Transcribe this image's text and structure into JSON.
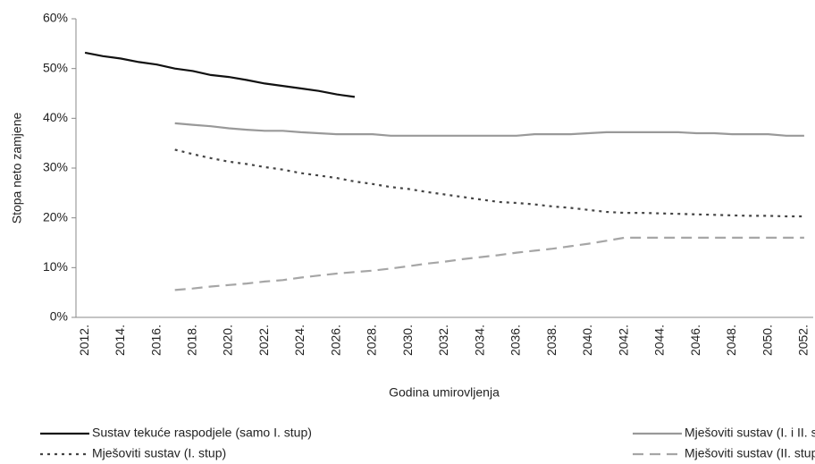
{
  "chart_data": {
    "type": "line",
    "x_label": "Godina umirovljenja",
    "y_label": "Stopa neto zamjene",
    "categories": [
      "2012.",
      null,
      "2014.",
      null,
      "2016.",
      null,
      "2018.",
      null,
      "2020.",
      null,
      "2022.",
      null,
      "2024.",
      null,
      "2026.",
      null,
      "2028.",
      null,
      "2030.",
      null,
      "2032.",
      null,
      "2034.",
      null,
      "2036.",
      null,
      "2038.",
      null,
      "2040.",
      null,
      "2042.",
      null,
      "2044.",
      null,
      "2046.",
      null,
      "2048.",
      null,
      "2050.",
      null,
      "2052."
    ],
    "ylim": [
      0,
      60
    ],
    "yticks": [
      {
        "value": 0,
        "label": "0%"
      },
      {
        "value": 10,
        "label": "10%"
      },
      {
        "value": 20,
        "label": "20%"
      },
      {
        "value": 30,
        "label": "30%"
      },
      {
        "value": 40,
        "label": "40%"
      },
      {
        "value": 50,
        "label": "50%"
      },
      {
        "value": 60,
        "label": "60%"
      }
    ],
    "legend": "bottom",
    "series": [
      {
        "name": "Sustav tekuće raspodjele (samo I. stup)",
        "color": "#111111",
        "dash": "solid",
        "values": [
          53.2,
          52.5,
          52.0,
          51.3,
          50.8,
          50.0,
          49.5,
          48.7,
          48.3,
          47.7,
          47.0,
          46.5,
          46.0,
          45.5,
          44.8,
          44.3,
          null,
          null,
          null,
          null,
          null,
          null,
          null,
          null,
          null,
          null,
          null,
          null,
          null,
          null,
          null,
          null,
          null,
          null,
          null,
          null,
          null,
          null,
          null,
          null,
          null
        ]
      },
      {
        "name": "Mješoviti sustav (I. i II. stup)",
        "color": "#999999",
        "dash": "solid",
        "values": [
          null,
          null,
          null,
          null,
          null,
          39.0,
          38.7,
          38.4,
          38.0,
          37.7,
          37.5,
          37.5,
          37.2,
          37.0,
          36.8,
          36.8,
          36.8,
          36.5,
          36.5,
          36.5,
          36.5,
          36.5,
          36.5,
          36.5,
          36.5,
          36.8,
          36.8,
          36.8,
          37.0,
          37.2,
          37.2,
          37.2,
          37.2,
          37.2,
          37.0,
          37.0,
          36.8,
          36.8,
          36.8,
          36.5,
          36.5
        ]
      },
      {
        "name": "Mješoviti sustav (I. stup)",
        "color": "#444444",
        "dash": "dotted",
        "values": [
          null,
          null,
          null,
          null,
          null,
          33.7,
          32.8,
          32.0,
          31.3,
          30.8,
          30.2,
          29.7,
          29.0,
          28.5,
          28.0,
          27.3,
          26.8,
          26.2,
          25.8,
          25.2,
          24.7,
          24.2,
          23.7,
          23.2,
          23.0,
          22.7,
          22.3,
          22.0,
          21.6,
          21.2,
          21.0,
          21.0,
          20.9,
          20.8,
          20.7,
          20.6,
          20.5,
          20.4,
          20.4,
          20.3,
          20.3
        ]
      },
      {
        "name": "Mješoviti sustav (II. stup)",
        "color": "#a6a6a6",
        "dash": "dashed",
        "values": [
          null,
          null,
          null,
          null,
          null,
          5.5,
          5.8,
          6.2,
          6.5,
          6.8,
          7.2,
          7.5,
          8.0,
          8.4,
          8.8,
          9.1,
          9.4,
          9.8,
          10.3,
          10.8,
          11.2,
          11.7,
          12.1,
          12.5,
          13.0,
          13.4,
          13.8,
          14.3,
          14.8,
          15.4,
          16.0,
          16.0,
          16.0,
          16.0,
          16.0,
          16.0,
          16.0,
          16.0,
          16.0,
          16.0,
          16.0
        ]
      }
    ]
  }
}
